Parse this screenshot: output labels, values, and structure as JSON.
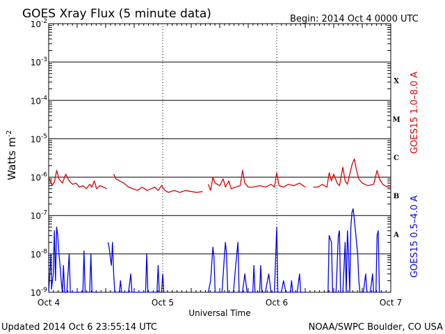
{
  "header": {
    "title": "GOES Xray Flux (5 minute data)",
    "begin": "Begin:  2014 Oct 4 0000 UTC"
  },
  "footer": {
    "updated": "Updated 2014 Oct  6 23:55:14 UTC",
    "credit": "NOAA/SWPC Boulder, CO USA"
  },
  "chart_data": {
    "type": "line",
    "title": "GOES Xray Flux (5 minute data)",
    "xlabel": "Universal Time",
    "ylabel": "Watts m",
    "ylabel_superscript": "-2",
    "y_scale": "log",
    "ylim": [
      1e-09,
      0.01
    ],
    "xlim": [
      "2014-10-04 00:00",
      "2014-10-07 00:00"
    ],
    "x_ticks": [
      {
        "t": "2014-10-04 00:00",
        "label": "Oct 4"
      },
      {
        "t": "2014-10-05 00:00",
        "label": "Oct 5"
      },
      {
        "t": "2014-10-06 00:00",
        "label": "Oct 6"
      },
      {
        "t": "2014-10-07 00:00",
        "label": "Oct 7"
      }
    ],
    "y_ticks": [
      {
        "exp": -2,
        "base": "10",
        "sup": "-2"
      },
      {
        "exp": -3,
        "base": "10",
        "sup": "-3"
      },
      {
        "exp": -4,
        "base": "10",
        "sup": "-4"
      },
      {
        "exp": -5,
        "base": "10",
        "sup": "-5"
      },
      {
        "exp": -6,
        "base": "10",
        "sup": "-6"
      },
      {
        "exp": -7,
        "base": "10",
        "sup": "-7"
      },
      {
        "exp": -8,
        "base": "10",
        "sup": "-8"
      },
      {
        "exp": -9,
        "base": "10",
        "sup": "-9"
      }
    ],
    "flare_classes": [
      {
        "label": "X",
        "exp": -3.5
      },
      {
        "label": "M",
        "exp": -4.5
      },
      {
        "label": "C",
        "exp": -5.5
      },
      {
        "label": "B",
        "exp": -6.5
      },
      {
        "label": "A",
        "exp": -7.5
      }
    ],
    "grid": true,
    "series": [
      {
        "name": "GOES15 1.0–8.0 A",
        "color": "#dd0000",
        "points": [
          [
            0.0,
            1e-06
          ],
          [
            0.03,
            6e-07
          ],
          [
            0.05,
            7.5e-07
          ],
          [
            0.07,
            1.5e-06
          ],
          [
            0.09,
            9e-07
          ],
          [
            0.12,
            7e-07
          ],
          [
            0.15,
            1.2e-06
          ],
          [
            0.18,
            8e-07
          ],
          [
            0.21,
            6.5e-07
          ],
          [
            0.24,
            7e-07
          ],
          [
            0.27,
            5.5e-07
          ],
          [
            0.3,
            6e-07
          ],
          [
            0.33,
            5e-07
          ],
          [
            0.36,
            6.5e-07
          ],
          [
            0.38,
            5.5e-07
          ],
          [
            0.4,
            8e-07
          ],
          [
            0.42,
            5e-07
          ],
          [
            0.45,
            6e-07
          ],
          [
            0.48,
            5.5e-07
          ],
          [
            0.51,
            5e-07
          ],
          null,
          [
            0.57,
            1.2e-06
          ],
          [
            0.59,
            9e-07
          ],
          [
            0.62,
            8e-07
          ],
          [
            0.66,
            7e-07
          ],
          [
            0.7,
            5.5e-07
          ],
          [
            0.74,
            5e-07
          ],
          [
            0.78,
            4.5e-07
          ],
          [
            0.82,
            5.5e-07
          ],
          [
            0.86,
            4.5e-07
          ],
          [
            0.9,
            5e-07
          ],
          [
            0.93,
            5.5e-07
          ],
          [
            0.96,
            4.5e-07
          ],
          [
            0.99,
            6e-07
          ],
          [
            1.02,
            4.5e-07
          ],
          [
            1.05,
            4e-07
          ],
          [
            1.1,
            4.5e-07
          ],
          [
            1.15,
            4e-07
          ],
          [
            1.2,
            4.5e-07
          ],
          [
            1.25,
            4.2e-07
          ],
          [
            1.3,
            4e-07
          ],
          [
            1.35,
            4.2e-07
          ],
          null,
          [
            1.4,
            6.5e-07
          ],
          [
            1.42,
            4.5e-07
          ],
          [
            1.44,
            1e-06
          ],
          [
            1.46,
            7e-07
          ],
          [
            1.5,
            6e-07
          ],
          [
            1.53,
            9e-07
          ],
          [
            1.55,
            5.5e-07
          ],
          [
            1.58,
            8e-07
          ],
          [
            1.6,
            5e-07
          ],
          [
            1.64,
            5.5e-07
          ],
          [
            1.68,
            6e-07
          ],
          [
            1.7,
            1.5e-06
          ],
          [
            1.72,
            7e-07
          ],
          [
            1.75,
            5.5e-07
          ],
          [
            1.8,
            5.5e-07
          ],
          [
            1.85,
            6e-07
          ],
          [
            1.9,
            5.5e-07
          ],
          [
            1.95,
            6.5e-07
          ],
          [
            1.98,
            5.5e-07
          ],
          [
            2.0,
            1.3e-06
          ],
          [
            2.02,
            6e-07
          ],
          [
            2.06,
            5.5e-07
          ],
          [
            2.1,
            6.5e-07
          ],
          [
            2.15,
            6e-07
          ],
          [
            2.2,
            7e-07
          ],
          [
            2.23,
            6e-07
          ],
          [
            2.25,
            5.5e-07
          ],
          null,
          [
            2.32,
            5.5e-07
          ],
          [
            2.36,
            5.5e-07
          ],
          [
            2.4,
            6.5e-07
          ],
          [
            2.44,
            5.5e-07
          ],
          [
            2.46,
            1.3e-06
          ],
          [
            2.48,
            8e-07
          ],
          [
            2.5,
            1.2e-06
          ],
          [
            2.53,
            7e-07
          ],
          [
            2.55,
            6e-07
          ],
          [
            2.58,
            1.8e-06
          ],
          [
            2.6,
            8e-07
          ],
          [
            2.62,
            6.5e-07
          ],
          [
            2.64,
            1.2e-06
          ],
          [
            2.66,
            2.1e-06
          ],
          [
            2.68,
            3e-06
          ],
          [
            2.7,
            1.5e-06
          ],
          [
            2.72,
            9e-07
          ],
          [
            2.75,
            7e-07
          ],
          [
            2.8,
            6e-07
          ],
          [
            2.85,
            6.5e-07
          ],
          [
            2.88,
            1.5e-06
          ],
          [
            2.9,
            9e-07
          ],
          [
            2.93,
            6.5e-07
          ],
          [
            2.97,
            5.5e-07
          ],
          [
            3.0,
            5.5e-07
          ]
        ]
      },
      {
        "name": "GOES15 0.5–4.0 A",
        "color": "#0000ee",
        "points": [
          [
            0.0,
            1e-09
          ],
          [
            0.02,
            1e-08
          ],
          [
            0.025,
            1.2e-09
          ],
          [
            0.04,
            3e-09
          ],
          [
            0.05,
            4e-08
          ],
          [
            0.06,
            2e-09
          ],
          [
            0.07,
            5e-08
          ],
          [
            0.08,
            3e-08
          ],
          [
            0.09,
            1e-08
          ],
          [
            0.1,
            5e-09
          ],
          [
            0.11,
            2e-09
          ],
          [
            0.12,
            1e-09
          ],
          [
            0.13,
            5e-09
          ],
          [
            0.14,
            1e-09
          ],
          [
            0.16,
            1e-09
          ],
          [
            0.18,
            1e-08
          ],
          [
            0.19,
            1e-09
          ],
          [
            0.3,
            1e-09
          ],
          [
            0.31,
            1.2e-08
          ],
          [
            0.32,
            1e-09
          ],
          [
            0.36,
            1e-09
          ],
          [
            0.37,
            1e-08
          ],
          [
            0.38,
            1e-09
          ],
          [
            0.43,
            1e-09
          ],
          [
            0.45,
            1e-09
          ],
          null,
          [
            0.52,
            2e-08
          ],
          [
            0.53,
            1.5e-08
          ],
          [
            0.54,
            8e-09
          ],
          [
            0.55,
            5e-09
          ],
          [
            0.56,
            2e-08
          ],
          [
            0.57,
            3e-09
          ],
          [
            0.58,
            1e-09
          ],
          [
            0.62,
            1e-09
          ],
          [
            0.63,
            2e-09
          ],
          [
            0.64,
            1e-09
          ],
          [
            0.7,
            1e-09
          ],
          [
            0.72,
            3e-09
          ],
          [
            0.73,
            1e-09
          ],
          [
            0.85,
            1e-09
          ],
          [
            0.86,
            1e-08
          ],
          [
            0.87,
            1e-09
          ],
          [
            0.95,
            1e-09
          ],
          [
            0.96,
            5e-09
          ],
          [
            0.97,
            1e-09
          ],
          [
            0.99,
            1e-09
          ],
          [
            1.0,
            3e-09
          ],
          [
            1.01,
            1e-09
          ],
          null,
          [
            1.4,
            1e-09
          ],
          [
            1.42,
            2e-09
          ],
          [
            1.44,
            1.5e-08
          ],
          [
            1.45,
            8e-09
          ],
          [
            1.46,
            1e-09
          ],
          [
            1.48,
            1e-09
          ],
          [
            1.5,
            1e-09
          ],
          [
            1.52,
            1e-09
          ],
          [
            1.54,
            8e-09
          ],
          [
            1.55,
            2e-08
          ],
          [
            1.56,
            1e-08
          ],
          [
            1.57,
            1e-09
          ],
          [
            1.6,
            1e-09
          ],
          [
            1.62,
            1e-09
          ],
          [
            1.64,
            5e-09
          ],
          [
            1.66,
            2e-08
          ],
          [
            1.67,
            1e-09
          ],
          [
            1.7,
            1e-09
          ],
          [
            1.72,
            3e-09
          ],
          [
            1.74,
            1e-09
          ],
          [
            1.79,
            1e-09
          ],
          [
            1.8,
            5e-09
          ],
          [
            1.81,
            1e-09
          ],
          [
            1.85,
            1e-09
          ],
          [
            1.86,
            5e-09
          ],
          [
            1.87,
            1e-09
          ],
          [
            1.9,
            1e-09
          ],
          [
            1.93,
            3e-09
          ],
          [
            1.95,
            1e-09
          ],
          [
            1.98,
            1e-09
          ],
          [
            2.0,
            5e-08
          ],
          [
            2.01,
            1e-09
          ],
          [
            2.04,
            1e-09
          ],
          [
            2.06,
            2e-09
          ],
          [
            2.08,
            1e-09
          ],
          [
            2.12,
            1e-09
          ],
          [
            2.13,
            2e-09
          ],
          [
            2.14,
            1e-09
          ],
          [
            2.18,
            1e-09
          ],
          [
            2.2,
            3e-09
          ],
          [
            2.21,
            1e-09
          ],
          [
            2.25,
            1e-09
          ],
          null,
          [
            2.45,
            1e-09
          ],
          [
            2.46,
            3e-08
          ],
          [
            2.48,
            2e-08
          ],
          [
            2.49,
            1e-09
          ],
          [
            2.52,
            1e-09
          ],
          [
            2.54,
            3e-08
          ],
          [
            2.55,
            4e-08
          ],
          [
            2.56,
            1e-09
          ],
          [
            2.58,
            1e-09
          ],
          [
            2.6,
            2e-08
          ],
          [
            2.61,
            1e-09
          ],
          [
            2.62,
            4e-08
          ],
          [
            2.63,
            1e-08
          ],
          [
            2.64,
            1e-09
          ],
          [
            2.65,
            5e-08
          ],
          [
            2.66,
            1.2e-07
          ],
          [
            2.67,
            1.5e-07
          ],
          [
            2.68,
            8e-08
          ],
          [
            2.69,
            4e-08
          ],
          [
            2.7,
            2e-08
          ],
          [
            2.71,
            1e-08
          ],
          [
            2.72,
            2e-09
          ],
          [
            2.73,
            1e-09
          ],
          [
            2.76,
            1e-09
          ],
          [
            2.78,
            3e-09
          ],
          [
            2.79,
            1e-09
          ],
          [
            2.82,
            1e-09
          ],
          [
            2.84,
            3e-09
          ],
          [
            2.85,
            1e-09
          ],
          [
            2.87,
            1e-09
          ],
          [
            2.88,
            3e-08
          ],
          [
            2.89,
            4e-08
          ],
          [
            2.9,
            1e-09
          ],
          [
            2.92,
            1e-09
          ],
          [
            2.93,
            1e-09
          ]
        ]
      }
    ]
  }
}
